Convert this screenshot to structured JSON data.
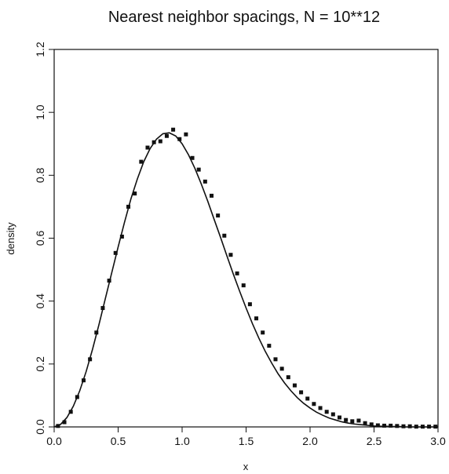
{
  "chart_data": {
    "type": "scatter",
    "title": "Nearest neighbor spacings, N = 10**12",
    "xlabel": "x",
    "ylabel": "density",
    "xlim": [
      0.0,
      3.0
    ],
    "ylim": [
      0.0,
      1.2
    ],
    "x_ticks": [
      0.0,
      0.5,
      1.0,
      1.5,
      2.0,
      2.5,
      3.0
    ],
    "x_tick_labels": [
      "0.0",
      "0.5",
      "1.0",
      "1.5",
      "2.0",
      "2.5",
      "3.0"
    ],
    "y_ticks": [
      0.0,
      0.2,
      0.4,
      0.6,
      0.8,
      1.0,
      1.2
    ],
    "y_tick_labels": [
      "0.0",
      "0.2",
      "0.4",
      "0.6",
      "0.8",
      "1.0",
      "1.2"
    ],
    "grid": false,
    "legend": "none",
    "series": [
      {
        "type": "line",
        "x": [
          0.0,
          0.05,
          0.1,
          0.15,
          0.2,
          0.25,
          0.3,
          0.35,
          0.4,
          0.45,
          0.5,
          0.55,
          0.6,
          0.65,
          0.7,
          0.75,
          0.8,
          0.85,
          0.9,
          0.95,
          1.0,
          1.05,
          1.1,
          1.15,
          1.2,
          1.25,
          1.3,
          1.35,
          1.4,
          1.45,
          1.5,
          1.55,
          1.6,
          1.65,
          1.7,
          1.75,
          1.8,
          1.85,
          1.9,
          1.95,
          2.0,
          2.05,
          2.1,
          2.15,
          2.2,
          2.25,
          2.3,
          2.35,
          2.4,
          2.45,
          2.5,
          2.55,
          2.6,
          2.65,
          2.7,
          2.75,
          2.8,
          2.85,
          2.9,
          2.95,
          3.0
        ],
        "y": [
          0.0,
          0.008,
          0.03,
          0.066,
          0.115,
          0.176,
          0.247,
          0.325,
          0.408,
          0.49,
          0.572,
          0.651,
          0.725,
          0.788,
          0.843,
          0.885,
          0.915,
          0.932,
          0.935,
          0.925,
          0.9,
          0.865,
          0.822,
          0.772,
          0.718,
          0.66,
          0.603,
          0.544,
          0.486,
          0.431,
          0.378,
          0.328,
          0.282,
          0.24,
          0.203,
          0.169,
          0.14,
          0.115,
          0.093,
          0.075,
          0.06,
          0.047,
          0.037,
          0.028,
          0.022,
          0.016,
          0.012,
          0.009,
          0.007,
          0.005,
          0.003,
          0.002,
          0.002,
          0.001,
          0.001,
          0.0,
          0.0,
          0.0,
          0.0,
          0.0,
          0.0
        ]
      },
      {
        "type": "scatter",
        "x": [
          0.03,
          0.08,
          0.13,
          0.18,
          0.23,
          0.28,
          0.33,
          0.38,
          0.43,
          0.48,
          0.53,
          0.58,
          0.63,
          0.68,
          0.73,
          0.78,
          0.83,
          0.88,
          0.93,
          0.98,
          1.03,
          1.08,
          1.13,
          1.18,
          1.23,
          1.28,
          1.33,
          1.38,
          1.43,
          1.48,
          1.53,
          1.58,
          1.63,
          1.68,
          1.73,
          1.78,
          1.83,
          1.88,
          1.93,
          1.98,
          2.03,
          2.08,
          2.13,
          2.18,
          2.23,
          2.28,
          2.33,
          2.38,
          2.43,
          2.48,
          2.53,
          2.58,
          2.63,
          2.68,
          2.73,
          2.78,
          2.83,
          2.88,
          2.93,
          2.98
        ],
        "y": [
          0.003,
          0.015,
          0.048,
          0.095,
          0.148,
          0.215,
          0.3,
          0.378,
          0.465,
          0.553,
          0.605,
          0.7,
          0.742,
          0.843,
          0.888,
          0.905,
          0.908,
          0.925,
          0.945,
          0.915,
          0.93,
          0.855,
          0.818,
          0.78,
          0.735,
          0.672,
          0.608,
          0.547,
          0.488,
          0.45,
          0.39,
          0.345,
          0.3,
          0.258,
          0.215,
          0.185,
          0.158,
          0.132,
          0.11,
          0.09,
          0.073,
          0.06,
          0.048,
          0.04,
          0.03,
          0.022,
          0.018,
          0.02,
          0.012,
          0.008,
          0.005,
          0.004,
          0.004,
          0.003,
          0.002,
          0.002,
          0.001,
          0.001,
          0.001,
          0.001
        ]
      }
    ]
  }
}
